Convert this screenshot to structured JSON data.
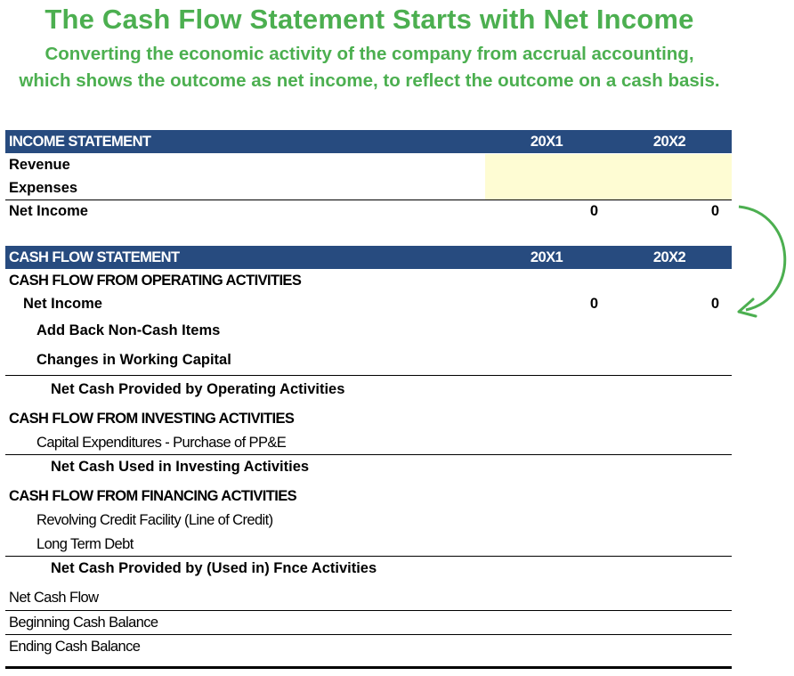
{
  "header": {
    "title": "The Cash Flow Statement Starts with Net Income",
    "subtitle": "Converting the economic activity of the company from accrual accounting, which shows the outcome as net income, to reflect the outcome on a cash basis."
  },
  "income_statement": {
    "label": "INCOME STATEMENT",
    "col1": "20X1",
    "col2": "20X2",
    "revenue": "Revenue",
    "expenses": "Expenses",
    "net_income_label": "Net Income",
    "net_income_v1": "0",
    "net_income_v2": "0"
  },
  "cash_flow": {
    "label": "CASH FLOW STATEMENT",
    "col1": "20X1",
    "col2": "20X2",
    "operating": {
      "title": "CASH FLOW FROM OPERATING ACTIVITIES",
      "net_income_label": "Net Income",
      "net_income_v1": "0",
      "net_income_v2": "0",
      "add_back": "Add Back Non-Cash Items",
      "working_capital": "Changes in Working Capital",
      "total": "Net Cash Provided by Operating Activities"
    },
    "investing": {
      "title": "CASH FLOW FROM INVESTING ACTIVITIES",
      "capex": "Capital Expenditures - Purchase of PP&E",
      "total": "Net Cash Used in Investing Activities"
    },
    "financing": {
      "title": "CASH FLOW FROM FINANCING ACTIVITIES",
      "revolver": "Revolving Credit Facility (Line of Credit)",
      "debt": "Long Term Debt",
      "total": "Net Cash Provided by (Used in) Fnce Activities"
    },
    "net_cash_flow": "Net Cash Flow",
    "beginning_balance": "Beginning Cash Balance",
    "ending_balance": "Ending Cash Balance"
  },
  "colors": {
    "accent": "#4caf50",
    "header_bg": "#274b7f",
    "input_fill": "#fefcd3"
  },
  "icons": {
    "arrow": "curved-arrow-icon"
  }
}
